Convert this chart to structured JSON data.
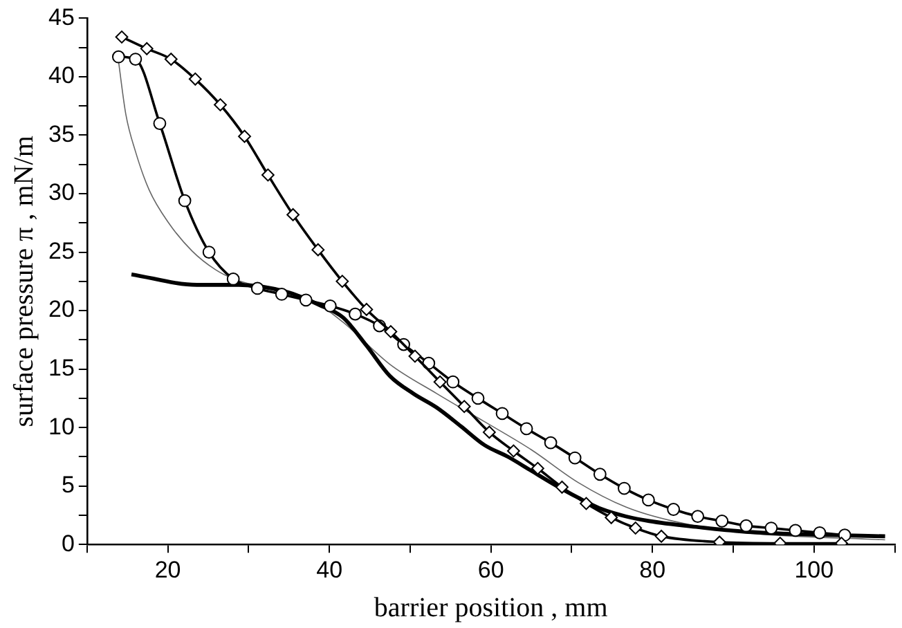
{
  "chart_data": {
    "type": "line",
    "xlabel": "barrier position , mm",
    "ylabel": "surface pressure π , mN/m",
    "xlim": [
      10,
      110
    ],
    "xticks": [
      {
        "value": 10,
        "label": null
      },
      20,
      {
        "value": 30,
        "label": null
      },
      40,
      {
        "value": 50,
        "label": null
      },
      60,
      {
        "value": 70,
        "label": null
      },
      80,
      {
        "value": 90,
        "label": null
      },
      100,
      {
        "value": 110,
        "label": null
      }
    ],
    "ylim": [
      0,
      45
    ],
    "yticks": [
      0,
      {
        "value": 2.5,
        "label": null
      },
      5,
      {
        "value": 7.5,
        "label": null
      },
      10,
      {
        "value": 12.5,
        "label": null
      },
      15,
      {
        "value": 17.5,
        "label": null
      },
      20,
      {
        "value": 22.5,
        "label": null
      },
      25,
      {
        "value": 27.5,
        "label": null
      },
      30,
      {
        "value": 32.5,
        "label": null
      },
      35,
      {
        "value": 37.5,
        "label": null
      },
      40,
      {
        "value": 42.5,
        "label": null
      },
      45
    ],
    "grid": false,
    "legend": false,
    "series": [
      {
        "color": "#000000",
        "marker": "diamond",
        "line_style": "solid",
        "x": [
          14.3,
          17.4,
          20.4,
          23.4,
          26.5,
          29.5,
          32.4,
          35.5,
          38.6,
          41.6,
          44.6,
          47.6,
          50.6,
          53.7,
          56.7,
          59.8,
          62.8,
          65.8,
          68.8,
          71.8,
          74.9,
          77.9,
          81.1,
          88.3,
          95.8,
          103.4
        ],
        "values": [
          43.4,
          42.4,
          41.5,
          39.8,
          37.6,
          34.9,
          31.6,
          28.2,
          25.2,
          22.5,
          20.1,
          18.2,
          16.1,
          13.9,
          11.8,
          9.6,
          8.0,
          6.5,
          4.9,
          3.5,
          2.3,
          1.4,
          0.7,
          0.2,
          0.1,
          0.1
        ]
      },
      {
        "color": "#000000",
        "marker": "circle",
        "line_style": "solid",
        "x": [
          13.9,
          16.0,
          19.0,
          22.1,
          25.1,
          28.1,
          31.1,
          34.1,
          37.1,
          40.1,
          43.2,
          46.2,
          49.2,
          52.3,
          55.3,
          58.4,
          61.4,
          64.4,
          67.4,
          70.4,
          73.5,
          76.5,
          79.5,
          82.6,
          85.6,
          88.6,
          91.6,
          94.7,
          97.7,
          100.7,
          103.8
        ],
        "values": [
          41.7,
          41.5,
          36.0,
          29.4,
          25.0,
          22.7,
          21.9,
          21.4,
          20.9,
          20.4,
          19.7,
          18.7,
          17.1,
          15.5,
          13.9,
          12.5,
          11.2,
          9.9,
          8.7,
          7.4,
          6.0,
          4.8,
          3.8,
          3.0,
          2.4,
          2.0,
          1.6,
          1.4,
          1.2,
          1.0,
          0.8
        ]
      },
      {
        "color": "#000000",
        "marker": "none",
        "line_style": "solid",
        "x": [
          15.5,
          23.6,
          28.8,
          34.7,
          38.7,
          41.7,
          44.6,
          47.5,
          50.4,
          53.3,
          56.3,
          59.2,
          62.1,
          65.0,
          67.9,
          70.8,
          73.8,
          76.7,
          79.6,
          85.4,
          91.3,
          97.1,
          108.8
        ],
        "values": [
          23.1,
          22.2,
          22.2,
          21.6,
          20.5,
          19.4,
          17.0,
          14.4,
          12.9,
          11.7,
          10.1,
          8.5,
          7.5,
          6.3,
          5.1,
          4.0,
          3.0,
          2.4,
          2.0,
          1.5,
          1.1,
          0.9,
          0.7
        ]
      },
      {
        "color": "#666666",
        "marker": "none",
        "line_style": "solid",
        "x": [
          13.9,
          14.8,
          16.0,
          17.7,
          20.1,
          23.0,
          25.9,
          28.2,
          31.7,
          37.6,
          41.7,
          47.5,
          53.3,
          59.2,
          65.0,
          70.8,
          76.7,
          82.5,
          91.3,
          108.8
        ],
        "values": [
          41.3,
          36.8,
          33.6,
          30.3,
          27.5,
          25.1,
          23.5,
          22.7,
          22.0,
          21.0,
          19.0,
          15.4,
          12.9,
          10.5,
          8.1,
          5.3,
          3.2,
          2.0,
          1.0,
          0.4
        ]
      }
    ]
  }
}
